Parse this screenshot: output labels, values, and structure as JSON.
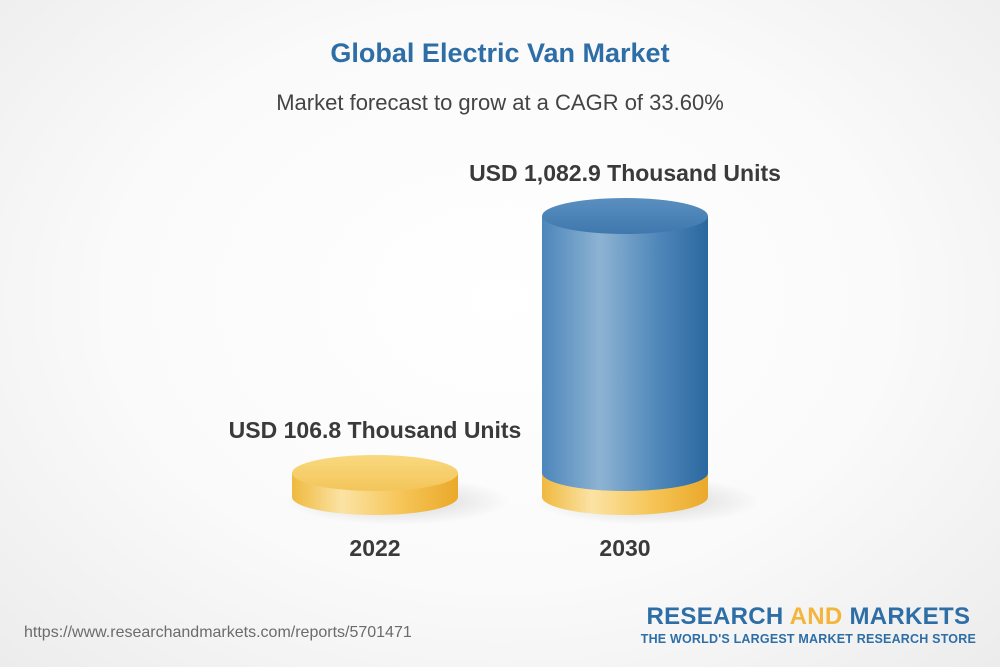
{
  "header": {
    "title": "Global Electric Van Market",
    "subtitle": "Market forecast to grow at a CAGR of 33.60%"
  },
  "chart_data": {
    "type": "bar",
    "style": "3d-cylinder",
    "title": "Global Electric Van Market",
    "subtitle": "Market forecast to grow at a CAGR of 33.60%",
    "categories": [
      "2022",
      "2030"
    ],
    "values": [
      106.8,
      1082.9
    ],
    "unit": "Thousand Units",
    "data_labels": [
      "USD 106.8 Thousand Units",
      "USD 1,082.9 Thousand Units"
    ],
    "grid": false,
    "colors": {
      "base": "#f3c85a",
      "bar_2030": "#3f7fb5"
    }
  },
  "footer": {
    "url": "https://www.researchandmarkets.com/reports/5701471",
    "brand_part1": "RESEARCH ",
    "brand_part2": "AND",
    "brand_part3": " MARKETS",
    "tagline": "THE WORLD'S LARGEST MARKET RESEARCH STORE"
  }
}
